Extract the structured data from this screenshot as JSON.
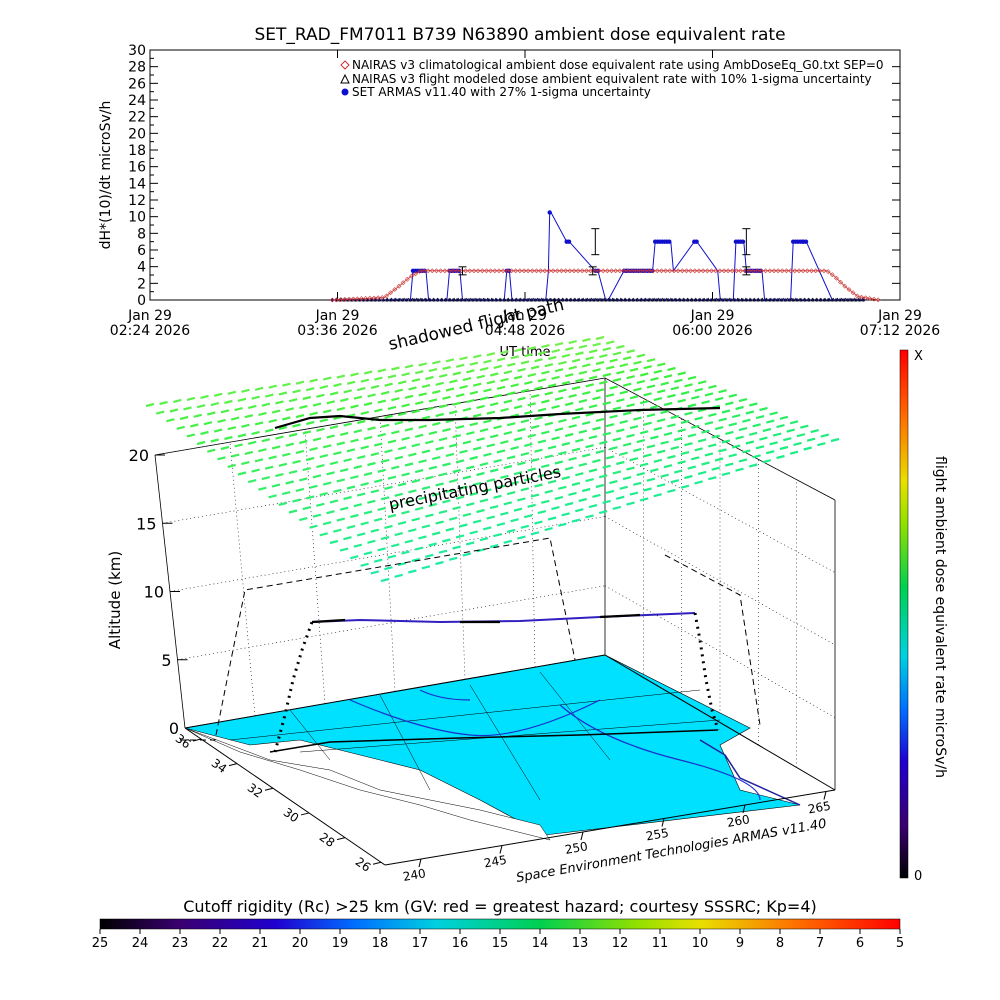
{
  "title": "SET_RAD_FM7011  B739 N63890 ambient dose equivalent rate",
  "colors": {
    "nairas_clim": "#cc3333",
    "armas": "#1010cc",
    "nairas_flight": "#000000",
    "surface": "#00e0ff"
  },
  "chart_data": [
    {
      "type": "line",
      "title": "SET_RAD_FM7011  B739 N63890 ambient dose equivalent rate",
      "xlabel": "UT time",
      "ylabel": "dH*(10)/dt microSv/h",
      "ylim": [
        0,
        30
      ],
      "yticks": [
        "0",
        "2",
        "4",
        "6",
        "8",
        "10",
        "12",
        "14",
        "16",
        "18",
        "20",
        "22",
        "24",
        "26",
        "28",
        "30"
      ],
      "xticks": [
        {
          "line1": "Jan 29",
          "line2": "02:24 2026"
        },
        {
          "line1": "Jan 29",
          "line2": "03:36 2026"
        },
        {
          "line1": "Jan 29",
          "line2": "04:48 2026"
        },
        {
          "line1": "Jan 29",
          "line2": "06:00 2026"
        },
        {
          "line1": "Jan 29",
          "line2": "07:12 2026"
        }
      ],
      "xlim_minutes": [
        0,
        288
      ],
      "legend_position": "top-right",
      "series": [
        {
          "name": "NAIRAS v3 climatological ambient dose equivalent rate using AmbDoseEq_G0.txt SEP=0",
          "marker": "diamond",
          "x": [
            70,
            90,
            95,
            100,
            104,
            108,
            140,
            180,
            220,
            260,
            263,
            267,
            272,
            280
          ],
          "y": [
            0,
            0.3,
            1.5,
            2.8,
            3.5,
            3.5,
            3.5,
            3.5,
            3.5,
            3.5,
            2.8,
            1.6,
            0.4,
            0.0
          ]
        },
        {
          "name": "NAIRAS v3 flight modeled dose ambient equivalent rate with 10% 1-sigma uncertainty",
          "marker": "triangle",
          "x": [
            70,
            275
          ],
          "y": [
            0,
            0
          ]
        },
        {
          "name": "SET ARMAS v11.40 with 27% 1-sigma uncertainty",
          "marker": "dot",
          "x": [
            70,
            100,
            101,
            106,
            107,
            114,
            115,
            119,
            120,
            136,
            137,
            138,
            139,
            152,
            153,
            153.5,
            154,
            160,
            161,
            171,
            172,
            175,
            176,
            182,
            183,
            193,
            194,
            200,
            201,
            209,
            210,
            218,
            219,
            224,
            225,
            228,
            229,
            235,
            236,
            246,
            247,
            251,
            252,
            262,
            263
          ],
          "y": [
            0,
            0,
            3.5,
            3.5,
            0,
            0,
            3.5,
            3.5,
            0,
            0,
            3.5,
            3.5,
            0,
            0,
            3.5,
            10.5,
            10.5,
            7,
            7,
            3.5,
            3.5,
            0,
            0,
            3.5,
            3.5,
            3.5,
            7,
            7,
            3.5,
            7,
            7,
            3.5,
            0,
            0,
            7,
            7,
            3.5,
            3.5,
            0,
            0,
            7,
            7,
            7,
            0,
            0
          ]
        }
      ],
      "error_bars_at": [
        {
          "x": 120,
          "y": 3.5
        },
        {
          "x": 170,
          "y": 3.5
        },
        {
          "x": 171,
          "y": 7
        },
        {
          "x": 229,
          "y": 7
        },
        {
          "x": 229,
          "y": 3.5
        }
      ]
    },
    {
      "type": "scatter",
      "xlabel": "",
      "ylabel": "Altitude (km)",
      "zticks": [
        "0",
        "5",
        "10",
        "15",
        "20"
      ],
      "latitude_ticks": [
        "26",
        "28",
        "30",
        "32",
        "34",
        "36"
      ],
      "longitude_ticks": [
        "240",
        "245",
        "250",
        "255",
        "260",
        "265"
      ],
      "annotations": [
        "shadowed flight path",
        "precipitating particles"
      ],
      "credit": "Space Environment Technologies ARMAS v11.40",
      "colorbar_label": "flight ambient dose equivalent rate microSv/h",
      "colorbar_top": "X",
      "colorbar_bottom": "0",
      "flight_altitude_km": 10,
      "precipitating_altitude_km": 20
    },
    {
      "type": "heatmap",
      "title": "Cutoff rigidity (Rc) >25 km (GV: red = greatest hazard; courtesy SSSRC; Kp=4)",
      "ticks": [
        "25",
        "24",
        "23",
        "22",
        "21",
        "20",
        "19",
        "18",
        "17",
        "16",
        "15",
        "14",
        "13",
        "12",
        "11",
        "10",
        "9",
        "8",
        "7",
        "6",
        "5"
      ]
    }
  ]
}
